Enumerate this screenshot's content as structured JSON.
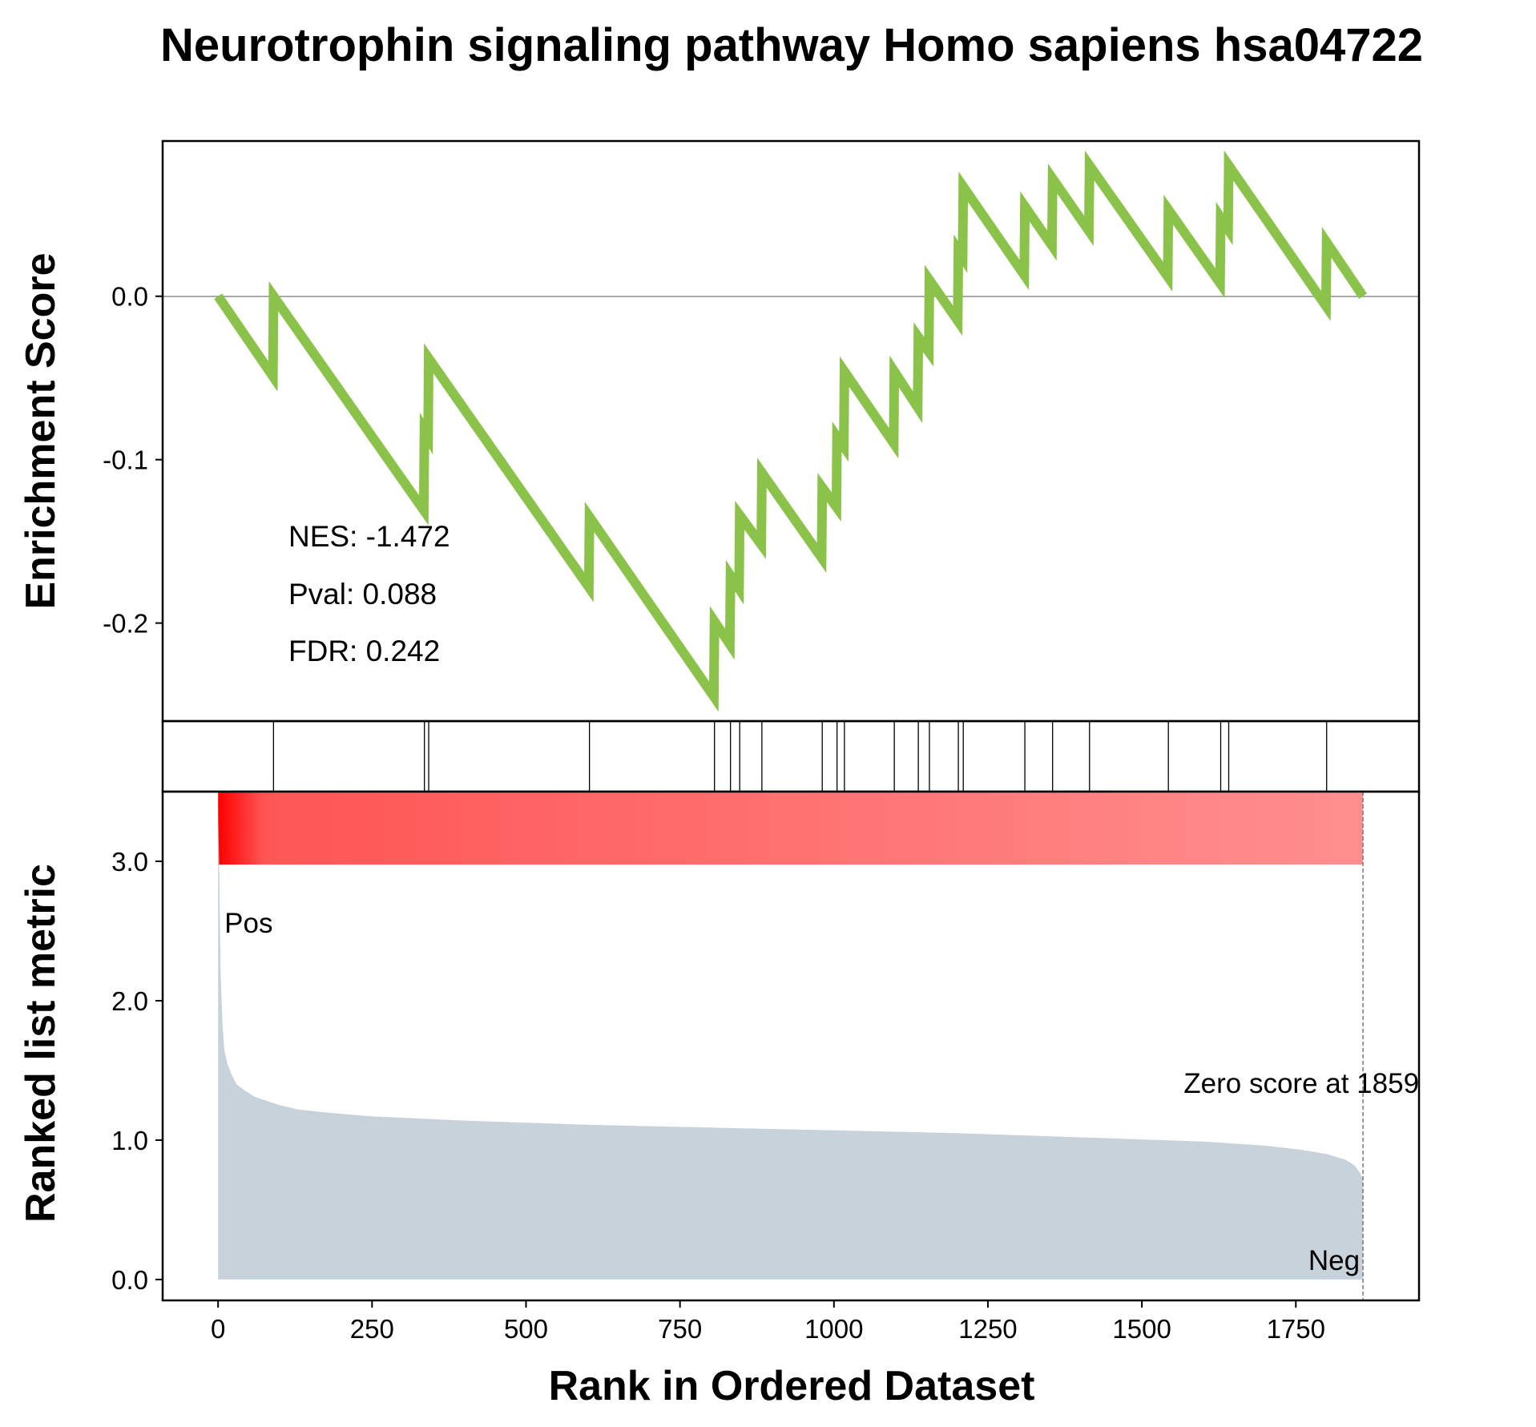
{
  "chart_data": {
    "type": "line",
    "title": "Neurotrophin signaling pathway Homo sapiens hsa04722",
    "ylabel_top": "Enrichment Score",
    "ylabel_bottom": "Ranked list metric",
    "xlabel": "Rank in Ordered Dataset",
    "xlim": [
      -90,
      1950
    ],
    "ylim_top": [
      -0.26,
      0.095
    ],
    "ylim_bottom": [
      -0.15,
      3.5
    ],
    "xticks": [
      0,
      250,
      500,
      750,
      1000,
      1250,
      1500,
      1750
    ],
    "xtick_labels": [
      "0",
      "250",
      "500",
      "750",
      "1000",
      "1250",
      "1500",
      "1750"
    ],
    "yticks_top": [
      0.0,
      -0.1,
      -0.2
    ],
    "ytick_labels_top": [
      "0.0",
      "-0.1",
      "-0.2"
    ],
    "yticks_bottom": [
      0.0,
      1.0,
      2.0,
      3.0
    ],
    "ytick_labels_bottom": [
      "0.0",
      "1.0",
      "2.0",
      "3.0"
    ],
    "stats": {
      "nes": "NES: -1.472",
      "pval": "Pval: 0.088",
      "fdr": "FDR: 0.242"
    },
    "pos_label": "Pos",
    "neg_label": "Neg",
    "zero_score_label": "Zero score at 1859",
    "zero_score_rank": 1859,
    "n_genes": 1859,
    "colors": {
      "es_line": "#8bc34a",
      "metric_fill": "#c8d2db",
      "heat_strong": "#ff0000",
      "heat_mid": "#ff5555",
      "heat_light": "#ff8f8f",
      "pos": "#ff0000",
      "neg": "#0000ff"
    },
    "hit_ranks": [
      90,
      335,
      342,
      603,
      806,
      832,
      847,
      883,
      981,
      1005,
      1017,
      1098,
      1137,
      1155,
      1202,
      1210,
      1310,
      1355,
      1415,
      1543,
      1628,
      1641,
      1800
    ],
    "es_curve": [
      {
        "x": 0,
        "y": 0.0
      },
      {
        "x": 89,
        "y": -0.049
      },
      {
        "x": 90,
        "y": 0.0
      },
      {
        "x": 334,
        "y": -0.131
      },
      {
        "x": 335,
        "y": -0.082
      },
      {
        "x": 341,
        "y": -0.086
      },
      {
        "x": 342,
        "y": -0.038
      },
      {
        "x": 602,
        "y": -0.178
      },
      {
        "x": 603,
        "y": -0.135
      },
      {
        "x": 805,
        "y": -0.245
      },
      {
        "x": 806,
        "y": -0.199
      },
      {
        "x": 831,
        "y": -0.213
      },
      {
        "x": 832,
        "y": -0.171
      },
      {
        "x": 846,
        "y": -0.179
      },
      {
        "x": 847,
        "y": -0.134
      },
      {
        "x": 882,
        "y": -0.152
      },
      {
        "x": 883,
        "y": -0.108
      },
      {
        "x": 980,
        "y": -0.16
      },
      {
        "x": 981,
        "y": -0.117
      },
      {
        "x": 1004,
        "y": -0.129
      },
      {
        "x": 1005,
        "y": -0.086
      },
      {
        "x": 1016,
        "y": -0.092
      },
      {
        "x": 1017,
        "y": -0.046
      },
      {
        "x": 1097,
        "y": -0.09
      },
      {
        "x": 1098,
        "y": -0.046
      },
      {
        "x": 1136,
        "y": -0.068
      },
      {
        "x": 1137,
        "y": -0.025
      },
      {
        "x": 1154,
        "y": -0.034
      },
      {
        "x": 1155,
        "y": 0.01
      },
      {
        "x": 1201,
        "y": -0.015
      },
      {
        "x": 1202,
        "y": 0.028
      },
      {
        "x": 1209,
        "y": 0.024
      },
      {
        "x": 1210,
        "y": 0.067
      },
      {
        "x": 1309,
        "y": 0.013
      },
      {
        "x": 1310,
        "y": 0.055
      },
      {
        "x": 1354,
        "y": 0.031
      },
      {
        "x": 1355,
        "y": 0.072
      },
      {
        "x": 1414,
        "y": 0.04
      },
      {
        "x": 1415,
        "y": 0.08
      },
      {
        "x": 1542,
        "y": 0.012
      },
      {
        "x": 1543,
        "y": 0.053
      },
      {
        "x": 1627,
        "y": 0.008
      },
      {
        "x": 1628,
        "y": 0.048
      },
      {
        "x": 1640,
        "y": 0.041
      },
      {
        "x": 1641,
        "y": 0.08
      },
      {
        "x": 1799,
        "y": -0.006
      },
      {
        "x": 1800,
        "y": 0.033
      },
      {
        "x": 1859,
        "y": 0.0
      }
    ],
    "metric_curve": [
      {
        "x": 0,
        "y": 3.4
      },
      {
        "x": 2,
        "y": 2.9
      },
      {
        "x": 4,
        "y": 2.2
      },
      {
        "x": 7,
        "y": 1.85
      },
      {
        "x": 10,
        "y": 1.65
      },
      {
        "x": 15,
        "y": 1.55
      },
      {
        "x": 22,
        "y": 1.47
      },
      {
        "x": 30,
        "y": 1.4
      },
      {
        "x": 45,
        "y": 1.35
      },
      {
        "x": 60,
        "y": 1.31
      },
      {
        "x": 80,
        "y": 1.28
      },
      {
        "x": 100,
        "y": 1.25
      },
      {
        "x": 130,
        "y": 1.22
      },
      {
        "x": 170,
        "y": 1.2
      },
      {
        "x": 250,
        "y": 1.17
      },
      {
        "x": 400,
        "y": 1.14
      },
      {
        "x": 600,
        "y": 1.11
      },
      {
        "x": 800,
        "y": 1.09
      },
      {
        "x": 1000,
        "y": 1.07
      },
      {
        "x": 1200,
        "y": 1.05
      },
      {
        "x": 1400,
        "y": 1.02
      },
      {
        "x": 1600,
        "y": 0.99
      },
      {
        "x": 1700,
        "y": 0.96
      },
      {
        "x": 1760,
        "y": 0.93
      },
      {
        "x": 1800,
        "y": 0.9
      },
      {
        "x": 1830,
        "y": 0.86
      },
      {
        "x": 1845,
        "y": 0.82
      },
      {
        "x": 1855,
        "y": 0.76
      },
      {
        "x": 1859,
        "y": 0.72
      }
    ]
  }
}
